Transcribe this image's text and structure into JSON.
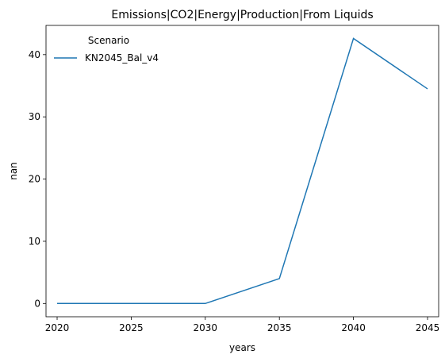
{
  "chart_data": {
    "type": "line",
    "title": "Emissions|CO2|Energy|Production|From Liquids",
    "xlabel": "years",
    "ylabel": "nan",
    "x": [
      2020,
      2025,
      2030,
      2035,
      2040,
      2045
    ],
    "xlim": [
      2019.25,
      2045.75
    ],
    "ylim": [
      -2.13,
      44.7
    ],
    "xticks": [
      2020,
      2025,
      2030,
      2035,
      2040,
      2045
    ],
    "yticks": [
      0,
      10,
      20,
      30,
      40
    ],
    "grid": false,
    "legend": {
      "title": "Scenario",
      "placement": "top-left"
    },
    "series": [
      {
        "name": "KN2045_Bal_v4",
        "color": "#1f77b4",
        "values": [
          0.0,
          0.0,
          0.0,
          4.0,
          42.6,
          34.5
        ]
      }
    ]
  }
}
